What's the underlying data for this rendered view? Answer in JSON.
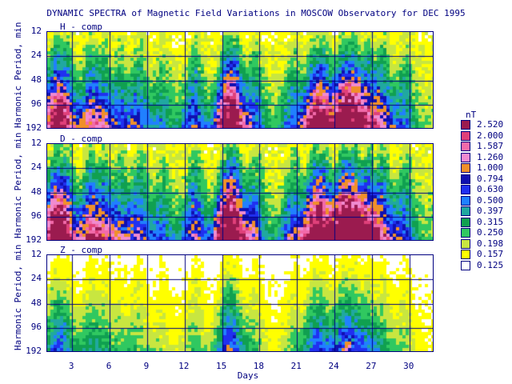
{
  "title": "DYNAMIC SPECTRA of Magnetic Field Variations in MOSCOW Observatory for DEC 1995",
  "chart_data": {
    "type": "heatmap",
    "panels": [
      {
        "label": "H - comp",
        "seed": 11,
        "intensity": 1.0
      },
      {
        "label": "D - comp",
        "seed": 29,
        "intensity": 1.15
      },
      {
        "label": "Z - comp",
        "seed": 53,
        "intensity": 0.45
      }
    ],
    "ylabel": "Harmonic Period, min",
    "yticks": [
      "12",
      "24",
      "48",
      "96",
      "192"
    ],
    "xlabel": "Days",
    "xticks": [
      "3",
      "6",
      "9",
      "12",
      "15",
      "18",
      "21",
      "24",
      "27",
      "30"
    ],
    "xlim": [
      1,
      32
    ],
    "legend_unit": "nT",
    "legend": [
      {
        "value": "2.520",
        "color": "#9b1b4f"
      },
      {
        "value": "2.000",
        "color": "#e0407a"
      },
      {
        "value": "1.587",
        "color": "#f26aaa"
      },
      {
        "value": "1.260",
        "color": "#f08bd0"
      },
      {
        "value": "1.000",
        "color": "#f0902a"
      },
      {
        "value": "0.794",
        "color": "#1010b0"
      },
      {
        "value": "0.630",
        "color": "#2030f0"
      },
      {
        "value": "0.500",
        "color": "#2080ff"
      },
      {
        "value": "0.397",
        "color": "#20a8a0"
      },
      {
        "value": "0.315",
        "color": "#10a050"
      },
      {
        "value": "0.250",
        "color": "#30c860"
      },
      {
        "value": "0.198",
        "color": "#c8e640"
      },
      {
        "value": "0.157",
        "color": "#ffff00"
      },
      {
        "value": "0.125",
        "color": "#ffffff"
      }
    ]
  }
}
